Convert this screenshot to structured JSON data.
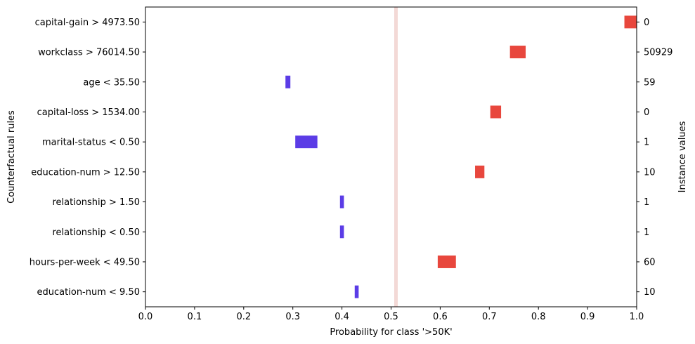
{
  "chart_data": {
    "type": "bar",
    "xlabel": "Probability for class '>50K'",
    "ylabel": "Counterfactual rules",
    "ylabel_right": "Instance values",
    "xlim": [
      0.0,
      1.0
    ],
    "xticks": [
      "0.0",
      "0.1",
      "0.2",
      "0.3",
      "0.4",
      "0.5",
      "0.6",
      "0.7",
      "0.8",
      "0.9",
      "1.0"
    ],
    "threshold": 0.51,
    "grid": false,
    "colors": {
      "positive": "#e8473d",
      "negative": "#5b3ce6",
      "threshold": "#f3d9d6"
    },
    "categories": [
      "capital-gain > 4973.50",
      "workclass > 76014.50",
      "age < 35.50",
      "capital-loss > 1534.00",
      "marital-status < 0.50",
      "education-num > 12.50",
      "relationship > 1.50",
      "relationship < 0.50",
      "hours-per-week < 49.50",
      "education-num < 9.50"
    ],
    "instance_values": [
      "0",
      "50929",
      "59",
      "0",
      "1",
      "10",
      "1",
      "1",
      "60",
      "10"
    ],
    "intervals": [
      [
        0.975,
        1.0
      ],
      [
        0.742,
        0.774
      ],
      [
        0.285,
        0.295
      ],
      [
        0.702,
        0.724
      ],
      [
        0.305,
        0.35
      ],
      [
        0.671,
        0.69
      ],
      [
        0.396,
        0.404
      ],
      [
        0.396,
        0.404
      ],
      [
        0.595,
        0.632
      ],
      [
        0.426,
        0.434
      ]
    ]
  }
}
